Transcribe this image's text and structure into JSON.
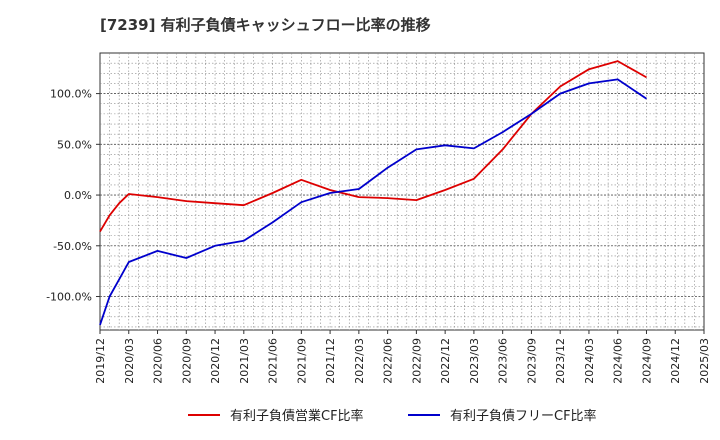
{
  "chart_data": {
    "type": "line",
    "title": "[7239]  有利子負債キャッシュフロー比率の推移",
    "xlabel": "",
    "ylabel": "",
    "x_ticks": [
      "2019/12",
      "2020/03",
      "2020/06",
      "2020/09",
      "2020/12",
      "2021/03",
      "2021/06",
      "2021/09",
      "2021/12",
      "2022/03",
      "2022/06",
      "2022/09",
      "2022/12",
      "2023/03",
      "2023/06",
      "2023/09",
      "2023/12",
      "2024/03",
      "2024/06",
      "2024/09",
      "2024/12",
      "2025/03"
    ],
    "y_ticks": [
      -100,
      -50,
      0,
      50,
      100
    ],
    "y_tick_labels": [
      "-100.0%",
      "-50.0%",
      "0.0%",
      "50.0%",
      "100.0%"
    ],
    "ylim": [
      -133,
      140
    ],
    "grid": true,
    "legend_position": "bottom",
    "series": [
      {
        "name": "有利子負債営業CF比率",
        "color": "#dd0000",
        "points": [
          [
            "2019/12",
            -36
          ],
          [
            "2020/01",
            -20
          ],
          [
            "2020/02",
            -8
          ],
          [
            "2020/03",
            1
          ],
          [
            "2020/06",
            -2
          ],
          [
            "2020/09",
            -6
          ],
          [
            "2020/12",
            -8
          ],
          [
            "2021/03",
            -10
          ],
          [
            "2021/06",
            2
          ],
          [
            "2021/09",
            15
          ],
          [
            "2021/12",
            5
          ],
          [
            "2022/03",
            -2
          ],
          [
            "2022/06",
            -3
          ],
          [
            "2022/09",
            -5
          ],
          [
            "2022/12",
            5
          ],
          [
            "2023/03",
            16
          ],
          [
            "2023/06",
            45
          ],
          [
            "2023/09",
            80
          ],
          [
            "2023/12",
            107
          ],
          [
            "2024/03",
            124
          ],
          [
            "2024/06",
            132
          ],
          [
            "2024/09",
            116
          ]
        ]
      },
      {
        "name": "有利子負債フリーCF比率",
        "color": "#0000cc",
        "points": [
          [
            "2019/12",
            -128
          ],
          [
            "2020/01",
            -100
          ],
          [
            "2020/02",
            -83
          ],
          [
            "2020/03",
            -66
          ],
          [
            "2020/06",
            -55
          ],
          [
            "2020/09",
            -62
          ],
          [
            "2020/12",
            -50
          ],
          [
            "2021/03",
            -45
          ],
          [
            "2021/06",
            -27
          ],
          [
            "2021/09",
            -7
          ],
          [
            "2021/12",
            2
          ],
          [
            "2022/03",
            6
          ],
          [
            "2022/06",
            27
          ],
          [
            "2022/09",
            45
          ],
          [
            "2022/12",
            49
          ],
          [
            "2023/03",
            46
          ],
          [
            "2023/06",
            62
          ],
          [
            "2023/09",
            80
          ],
          [
            "2023/12",
            100
          ],
          [
            "2024/03",
            110
          ],
          [
            "2024/06",
            114
          ],
          [
            "2024/09",
            95
          ]
        ]
      }
    ]
  }
}
